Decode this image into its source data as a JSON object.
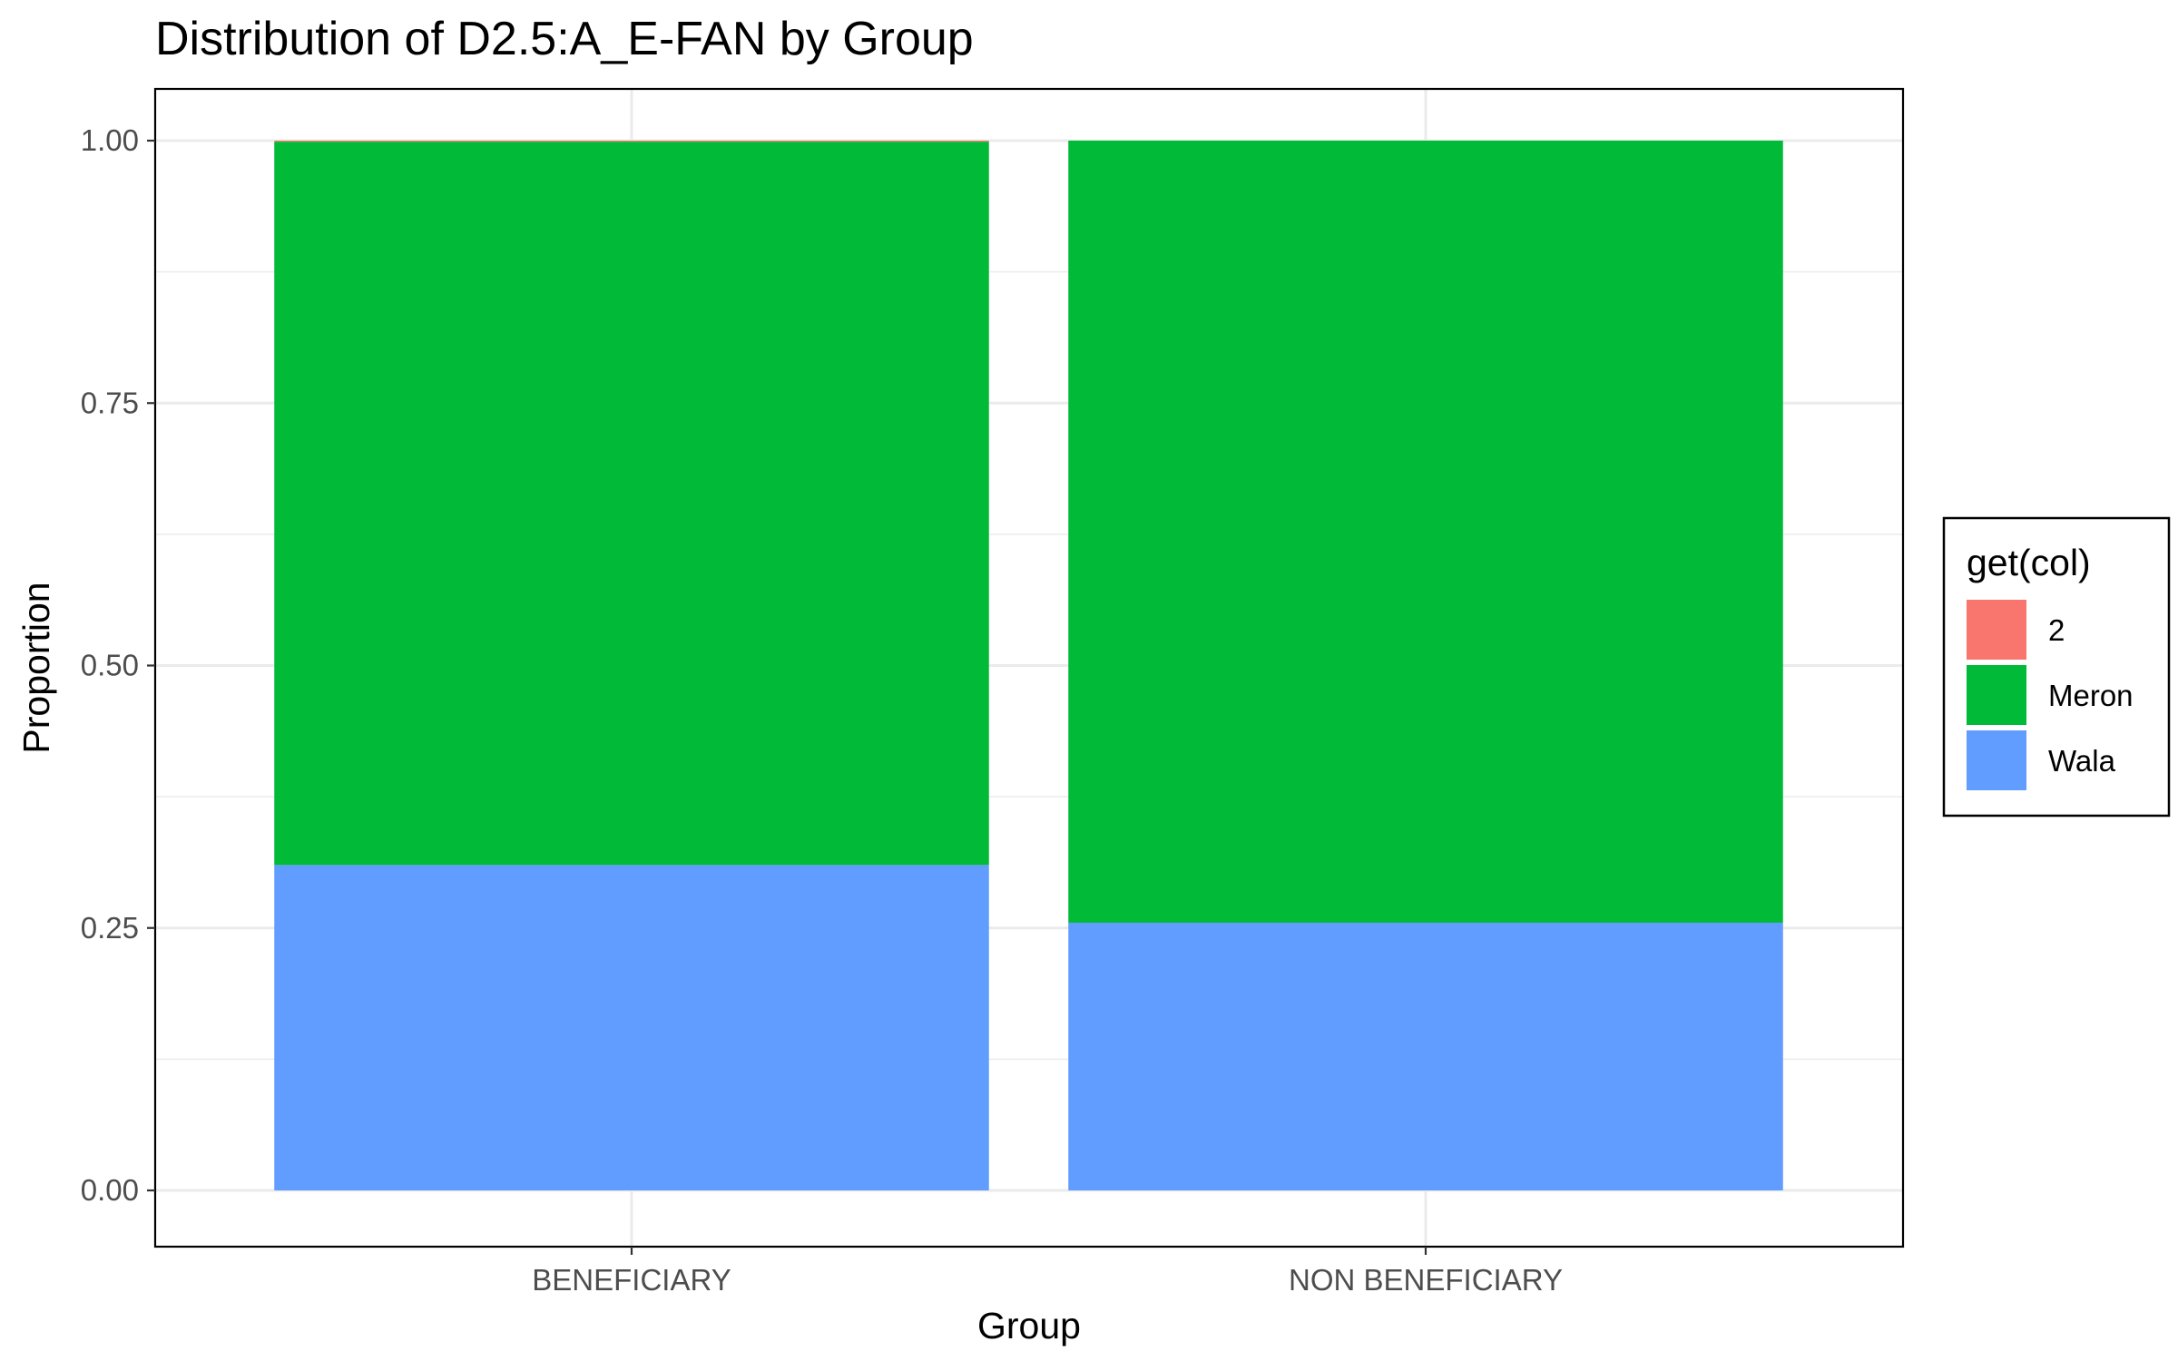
{
  "chart_data": {
    "type": "bar",
    "stacked": true,
    "title": "Distribution of D2.5:A_E-FAN by Group",
    "xlabel": "Group",
    "ylabel": "Proportion",
    "categories": [
      "BENEFICIARY",
      "NON BENEFICIARY"
    ],
    "ylim": [
      0,
      1.05
    ],
    "yticks": [
      0,
      0.25,
      0.5,
      0.75,
      1.0
    ],
    "ytick_labels": [
      "0.00",
      "0.25",
      "0.50",
      "0.75",
      "1.00"
    ],
    "series": [
      {
        "name": "Wala",
        "color": "#619CFF",
        "values": [
          0.31,
          0.255
        ]
      },
      {
        "name": "Meron",
        "color": "#00BA38",
        "values": [
          0.689,
          0.745
        ]
      },
      {
        "name": "2",
        "color": "#F8766D",
        "values": [
          0.001,
          0.0
        ]
      }
    ],
    "legend": {
      "title": "get(col)",
      "position": "right",
      "entries": [
        {
          "label": "2",
          "color": "#F8766D"
        },
        {
          "label": "Meron",
          "color": "#00BA38"
        },
        {
          "label": "Wala",
          "color": "#619CFF"
        }
      ]
    },
    "grid": true
  }
}
